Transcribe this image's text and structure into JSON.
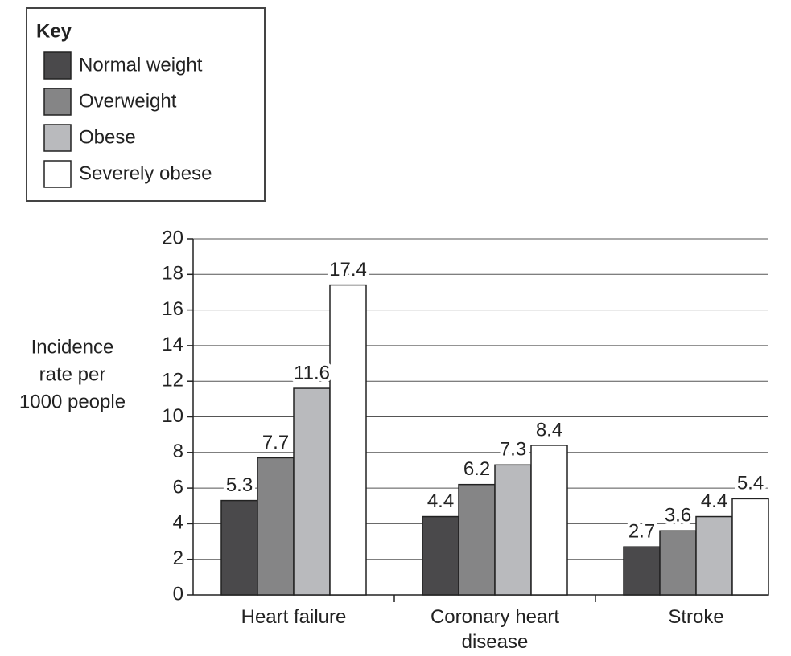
{
  "chart_data": {
    "type": "bar",
    "legend_title": "Key",
    "legend": "upper left",
    "ylabel": [
      "Incidence",
      "rate per",
      "1000 people"
    ],
    "categories": [
      "Heart failure",
      "Coronary heart disease",
      "Stroke"
    ],
    "series": [
      {
        "name": "Normal weight",
        "color": "#4a494b",
        "values": [
          5.3,
          4.4,
          2.7
        ]
      },
      {
        "name": "Overweight",
        "color": "#858586",
        "values": [
          7.7,
          6.2,
          3.6
        ]
      },
      {
        "name": "Obese",
        "color": "#b9babd",
        "values": [
          11.6,
          7.3,
          4.4
        ]
      },
      {
        "name": "Severely obese",
        "color": "#ffffff",
        "values": [
          17.4,
          8.4,
          5.4
        ]
      }
    ],
    "ylim": [
      0,
      20
    ],
    "yticks": [
      0,
      2,
      4,
      6,
      8,
      10,
      12,
      14,
      16,
      18,
      20
    ],
    "grid": true
  }
}
